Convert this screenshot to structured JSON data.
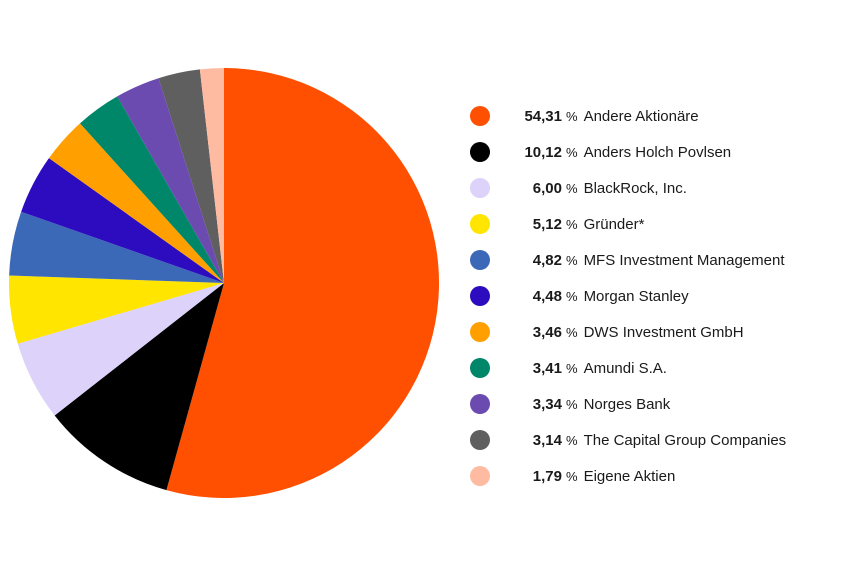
{
  "chart_data": {
    "type": "pie",
    "start_angle_deg": 0,
    "direction": "clockwise",
    "legend_position": "right",
    "unit": "%",
    "slices": [
      {
        "value": 54.31,
        "value_label": "54,31",
        "label": "Andere Aktionäre",
        "color": "#ff4f00"
      },
      {
        "value": 10.12,
        "value_label": "10,12",
        "label": "Anders Holch Povlsen",
        "color": "#000000"
      },
      {
        "value": 6.0,
        "value_label": "6,00",
        "label": "BlackRock, Inc.",
        "color": "#dcd2fa"
      },
      {
        "value": 5.12,
        "value_label": "5,12",
        "label": "Gründer*",
        "color": "#ffe500"
      },
      {
        "value": 4.82,
        "value_label": "4,82",
        "label": "MFS Investment Management",
        "color": "#3b69b8"
      },
      {
        "value": 4.48,
        "value_label": "4,48",
        "label": "Morgan Stanley",
        "color": "#2c0cbe"
      },
      {
        "value": 3.46,
        "value_label": "3,46",
        "label": "DWS Investment GmbH",
        "color": "#ffa000"
      },
      {
        "value": 3.41,
        "value_label": "3,41",
        "label": "Amundi S.A.",
        "color": "#00876a"
      },
      {
        "value": 3.34,
        "value_label": "3,34",
        "label": "Norges Bank",
        "color": "#6b4bb0"
      },
      {
        "value": 3.14,
        "value_label": "3,14",
        "label": "The Capital Group Companies",
        "color": "#5f5f5f"
      },
      {
        "value": 1.79,
        "value_label": "1,79",
        "label": "Eigene Aktien",
        "color": "#ffbba2"
      }
    ]
  }
}
